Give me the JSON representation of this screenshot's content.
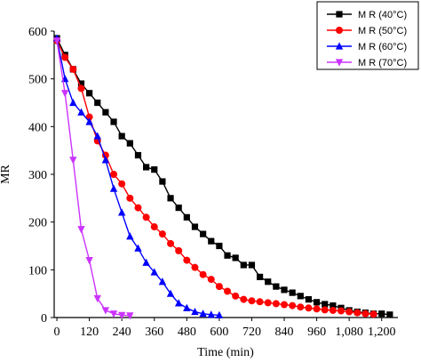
{
  "chart_data": {
    "type": "line",
    "xlabel": "Time (min)",
    "ylabel": "MR",
    "xlim": [
      -10,
      1260
    ],
    "ylim": [
      0,
      600
    ],
    "xticks": [
      0,
      120,
      240,
      360,
      480,
      600,
      720,
      840,
      960,
      1080,
      1200
    ],
    "xtick_labels": [
      "0",
      "120",
      "240",
      "360",
      "480",
      "600",
      "720",
      "840",
      "960",
      "1,080",
      "1,200"
    ],
    "yticks": [
      0,
      100,
      200,
      300,
      400,
      500,
      600
    ],
    "ytick_labels": [
      "0",
      "100",
      "200",
      "300",
      "400",
      "500",
      "600"
    ],
    "legend_position": "top-right",
    "grid": false,
    "series": [
      {
        "name": "M R (40°C)",
        "color": "#000000",
        "marker": "square",
        "x": [
          0,
          30,
          60,
          90,
          120,
          150,
          180,
          210,
          240,
          270,
          300,
          330,
          360,
          390,
          420,
          450,
          480,
          510,
          540,
          570,
          600,
          630,
          660,
          690,
          720,
          750,
          780,
          810,
          840,
          870,
          900,
          930,
          960,
          990,
          1020,
          1050,
          1080,
          1110,
          1140,
          1170,
          1200,
          1230
        ],
        "y": [
          585,
          550,
          520,
          490,
          470,
          450,
          430,
          410,
          380,
          365,
          340,
          315,
          310,
          285,
          250,
          230,
          210,
          190,
          175,
          160,
          150,
          130,
          125,
          110,
          110,
          85,
          75,
          65,
          58,
          52,
          45,
          38,
          32,
          28,
          25,
          20,
          15,
          12,
          10,
          8,
          8,
          6
        ]
      },
      {
        "name": "M R (50°C)",
        "color": "#ff0000",
        "marker": "circle",
        "x": [
          0,
          30,
          60,
          90,
          120,
          150,
          180,
          210,
          240,
          270,
          300,
          330,
          360,
          390,
          420,
          450,
          480,
          510,
          540,
          570,
          600,
          630,
          660,
          690,
          720,
          750,
          780,
          810,
          840,
          870,
          900,
          930,
          960,
          990,
          1020,
          1050,
          1080,
          1110,
          1140,
          1170
        ],
        "y": [
          580,
          545,
          520,
          480,
          420,
          370,
          340,
          300,
          280,
          250,
          230,
          210,
          190,
          175,
          155,
          140,
          120,
          105,
          90,
          80,
          65,
          55,
          45,
          38,
          35,
          33,
          31,
          29,
          27,
          25,
          22,
          20,
          18,
          16,
          15,
          14,
          12,
          10,
          8,
          7
        ]
      },
      {
        "name": "M R (60°C)",
        "color": "#0000ff",
        "marker": "triangle-up",
        "x": [
          0,
          30,
          60,
          90,
          120,
          150,
          180,
          210,
          240,
          270,
          300,
          330,
          360,
          390,
          420,
          450,
          480,
          510,
          540,
          570,
          600
        ],
        "y": [
          585,
          500,
          450,
          430,
          410,
          380,
          330,
          270,
          220,
          170,
          145,
          115,
          95,
          75,
          50,
          30,
          20,
          12,
          8,
          6,
          5
        ]
      },
      {
        "name": "M R (70°C)",
        "color": "#cc33ff",
        "marker": "triangle-down",
        "x": [
          0,
          30,
          60,
          90,
          120,
          150,
          180,
          210,
          240,
          270
        ],
        "y": [
          580,
          470,
          330,
          185,
          120,
          40,
          15,
          8,
          5,
          4
        ]
      }
    ]
  }
}
